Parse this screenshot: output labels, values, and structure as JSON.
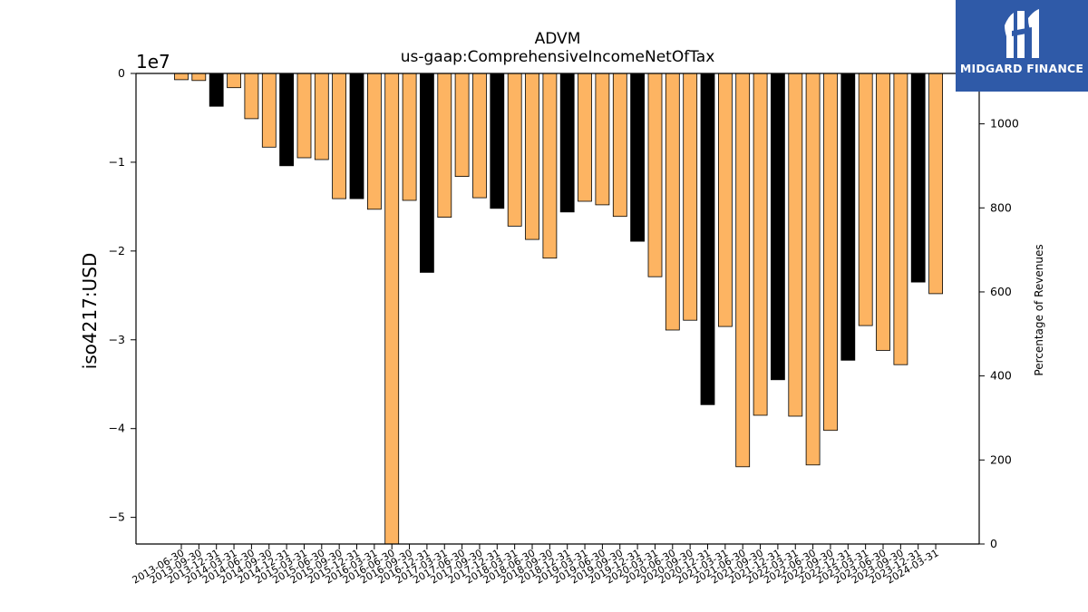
{
  "chart_data": {
    "type": "bar",
    "title": "ADVM",
    "subtitle": "us-gaap:ComprehensiveIncomeNetOfTax",
    "ylabel": "iso4217:USD",
    "y2label": "Percentage of Revenues",
    "y_multiplier": "1e7",
    "ylim": [
      -5.3,
      0
    ],
    "y2lim": [
      0,
      1120
    ],
    "yticks": [
      "0",
      "−1",
      "−2",
      "−3",
      "−4",
      "−5"
    ],
    "y2ticks": [
      "0",
      "200",
      "400",
      "600",
      "800",
      "1000"
    ],
    "categories": [
      "2013-06-30",
      "2013-09-30",
      "2013-12-31",
      "2014-03-31",
      "2014-06-30",
      "2014-09-30",
      "2014-12-31",
      "2015-03-31",
      "2015-06-30",
      "2015-09-30",
      "2015-12-31",
      "2016-03-31",
      "2016-06-30",
      "2016-09-30",
      "2016-12-31",
      "2017-03-31",
      "2017-06-30",
      "2017-09-30",
      "2017-12-31",
      "2018-03-31",
      "2018-06-30",
      "2018-09-30",
      "2018-12-31",
      "2019-03-31",
      "2019-06-30",
      "2019-09-30",
      "2019-12-31",
      "2020-03-31",
      "2020-06-30",
      "2020-09-30",
      "2020-12-31",
      "2021-03-31",
      "2021-06-30",
      "2021-09-30",
      "2021-12-31",
      "2022-03-31",
      "2022-06-30",
      "2022-09-30",
      "2022-12-31",
      "2023-03-31",
      "2023-06-30",
      "2023-09-30",
      "2023-12-31",
      "2024-03-31"
    ],
    "values": [
      -0.07,
      -0.08,
      -0.37,
      -0.16,
      -0.51,
      -0.83,
      -1.04,
      -0.95,
      -0.97,
      -1.41,
      -1.41,
      -1.53,
      -5.3,
      -1.43,
      -2.24,
      -1.62,
      -1.16,
      -1.4,
      -1.52,
      -1.72,
      -1.87,
      -2.08,
      -1.56,
      -1.44,
      -1.48,
      -1.61,
      -1.89,
      -2.29,
      -2.89,
      -2.78,
      -3.73,
      -2.85,
      -4.43,
      -3.85,
      -3.45,
      -3.86,
      -4.41,
      -4.02,
      -3.23,
      -2.84,
      -3.12,
      -3.28,
      -2.35,
      -2.48
    ],
    "annual_flags": [
      0,
      0,
      1,
      0,
      0,
      0,
      1,
      0,
      0,
      0,
      1,
      0,
      0,
      0,
      1,
      0,
      0,
      0,
      1,
      0,
      0,
      0,
      1,
      0,
      0,
      0,
      1,
      0,
      0,
      0,
      1,
      0,
      0,
      0,
      1,
      0,
      0,
      0,
      1,
      0,
      0,
      0,
      1,
      0
    ],
    "colors": {
      "quarter": "#fdb462",
      "annual": "#000000",
      "edge": "#000000"
    },
    "grid": false
  },
  "logo": {
    "text": "MIDGARD FINANCE"
  }
}
